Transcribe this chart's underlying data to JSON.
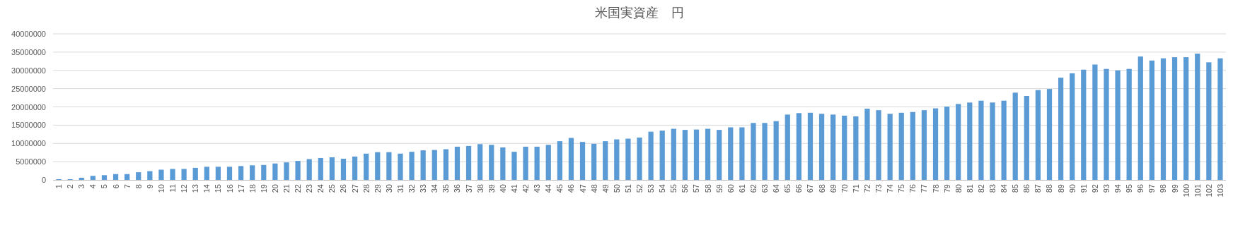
{
  "chart_data": {
    "type": "bar",
    "title": "米国実資産　円",
    "categories": [
      "1",
      "2",
      "3",
      "4",
      "5",
      "6",
      "7",
      "8",
      "9",
      "10",
      "11",
      "12",
      "13",
      "14",
      "15",
      "16",
      "17",
      "18",
      "19",
      "20",
      "21",
      "22",
      "23",
      "24",
      "25",
      "26",
      "27",
      "28",
      "29",
      "30",
      "31",
      "32",
      "33",
      "34",
      "35",
      "36",
      "37",
      "38",
      "39",
      "40",
      "41",
      "42",
      "43",
      "44",
      "45",
      "46",
      "47",
      "48",
      "49",
      "50",
      "51",
      "52",
      "53",
      "54",
      "55",
      "56",
      "57",
      "58",
      "59",
      "60",
      "61",
      "62",
      "63",
      "64",
      "65",
      "66",
      "67",
      "68",
      "69",
      "70",
      "71",
      "72",
      "73",
      "74",
      "75",
      "76",
      "77",
      "78",
      "79",
      "80",
      "81",
      "82",
      "83",
      "84",
      "85",
      "86",
      "87",
      "88",
      "89",
      "90",
      "91",
      "92",
      "93",
      "94",
      "95",
      "96",
      "97",
      "98",
      "99",
      "100",
      "101",
      "102",
      "103"
    ],
    "values": [
      200000,
      200000,
      600000,
      1100000,
      1300000,
      1600000,
      1600000,
      2100000,
      2400000,
      2800000,
      3000000,
      3000000,
      3300000,
      3600000,
      3600000,
      3600000,
      3800000,
      4000000,
      4100000,
      4500000,
      4800000,
      5200000,
      5700000,
      6000000,
      6200000,
      5800000,
      6400000,
      7200000,
      7600000,
      7600000,
      7200000,
      7700000,
      8100000,
      8200000,
      8400000,
      9100000,
      9300000,
      9800000,
      9600000,
      8900000,
      7700000,
      9100000,
      9100000,
      9600000,
      10600000,
      11500000,
      10400000,
      9900000,
      10600000,
      11100000,
      11300000,
      11600000,
      13200000,
      13500000,
      14000000,
      13700000,
      13800000,
      14000000,
      13700000,
      14400000,
      14400000,
      15600000,
      15600000,
      16100000,
      17900000,
      18300000,
      18400000,
      18100000,
      17900000,
      17600000,
      17400000,
      19500000,
      19100000,
      18100000,
      18400000,
      18600000,
      19100000,
      19600000,
      20100000,
      20800000,
      21200000,
      21700000,
      21200000,
      21700000,
      23900000,
      23000000,
      24600000,
      24900000,
      28000000,
      29200000,
      30200000,
      31600000,
      30400000,
      30000000,
      30400000,
      33800000,
      32700000,
      33300000,
      33600000,
      33600000,
      34600000,
      32200000,
      33300000
    ],
    "color": "#5b9bd5",
    "ylim": [
      0,
      40000000
    ],
    "yticks": [
      0,
      5000000,
      10000000,
      15000000,
      20000000,
      25000000,
      30000000,
      35000000,
      40000000
    ],
    "grid": "y"
  }
}
